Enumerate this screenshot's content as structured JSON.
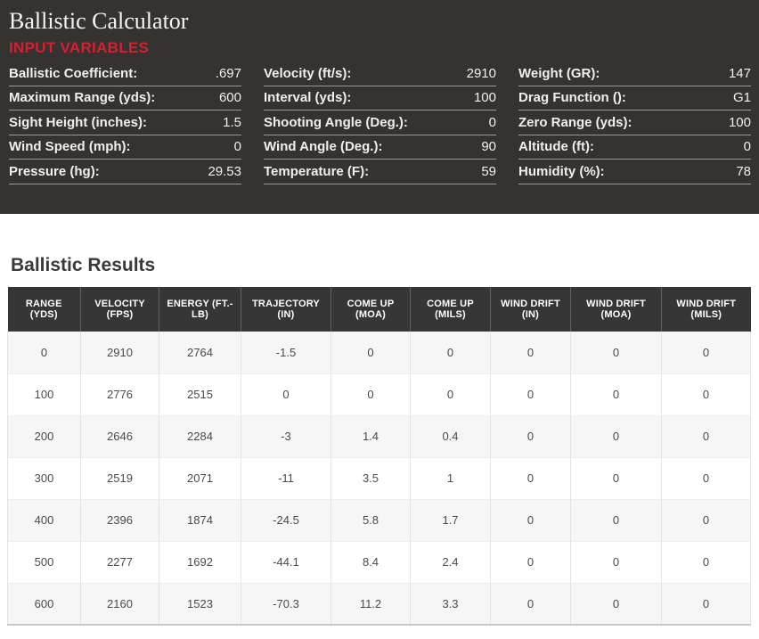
{
  "input_panel": {
    "title": "Ballistic Calculator",
    "section_label": "INPUT VARIABLES",
    "colors": {
      "panel_bg": "#353331",
      "accent_red": "#d61f2f",
      "text": "#f2efeb"
    },
    "fields": [
      {
        "label": "Ballistic Coefficient:",
        "value": ".697"
      },
      {
        "label": "Velocity (ft/s):",
        "value": "2910"
      },
      {
        "label": "Weight (GR):",
        "value": "147"
      },
      {
        "label": "Maximum Range (yds):",
        "value": "600"
      },
      {
        "label": "Interval (yds):",
        "value": "100"
      },
      {
        "label": "Drag Function ():",
        "value": "G1"
      },
      {
        "label": "Sight Height (inches):",
        "value": "1.5"
      },
      {
        "label": "Shooting Angle (Deg.):",
        "value": "0"
      },
      {
        "label": "Zero Range (yds):",
        "value": "100"
      },
      {
        "label": "Wind Speed (mph):",
        "value": "0"
      },
      {
        "label": "Wind Angle (Deg.):",
        "value": "90"
      },
      {
        "label": "Altitude (ft):",
        "value": "0"
      },
      {
        "label": "Pressure (hg):",
        "value": "29.53"
      },
      {
        "label": "Temperature (F):",
        "value": "59"
      },
      {
        "label": "Humidity (%):",
        "value": "78"
      }
    ]
  },
  "results": {
    "title": "Ballistic Results",
    "colors": {
      "header_bg": "#363636",
      "alt_row_bg": "#f6f6f6"
    },
    "table": {
      "columns": [
        "RANGE (YDS)",
        "VELOCITY (FPS)",
        "ENERGY (FT.-LB)",
        "TRAJECTORY (IN)",
        "COME UP (MOA)",
        "COME UP (MILS)",
        "WIND DRIFT (IN)",
        "WIND DRIFT (MOA)",
        "WIND DRIFT (MILS)"
      ],
      "rows": [
        [
          "0",
          "2910",
          "2764",
          "-1.5",
          "0",
          "0",
          "0",
          "0",
          "0"
        ],
        [
          "100",
          "2776",
          "2515",
          "0",
          "0",
          "0",
          "0",
          "0",
          "0"
        ],
        [
          "200",
          "2646",
          "2284",
          "-3",
          "1.4",
          "0.4",
          "0",
          "0",
          "0"
        ],
        [
          "300",
          "2519",
          "2071",
          "-11",
          "3.5",
          "1",
          "0",
          "0",
          "0"
        ],
        [
          "400",
          "2396",
          "1874",
          "-24.5",
          "5.8",
          "1.7",
          "0",
          "0",
          "0"
        ],
        [
          "500",
          "2277",
          "1692",
          "-44.1",
          "8.4",
          "2.4",
          "0",
          "0",
          "0"
        ],
        [
          "600",
          "2160",
          "1523",
          "-70.3",
          "11.2",
          "3.3",
          "0",
          "0",
          "0"
        ]
      ]
    }
  }
}
